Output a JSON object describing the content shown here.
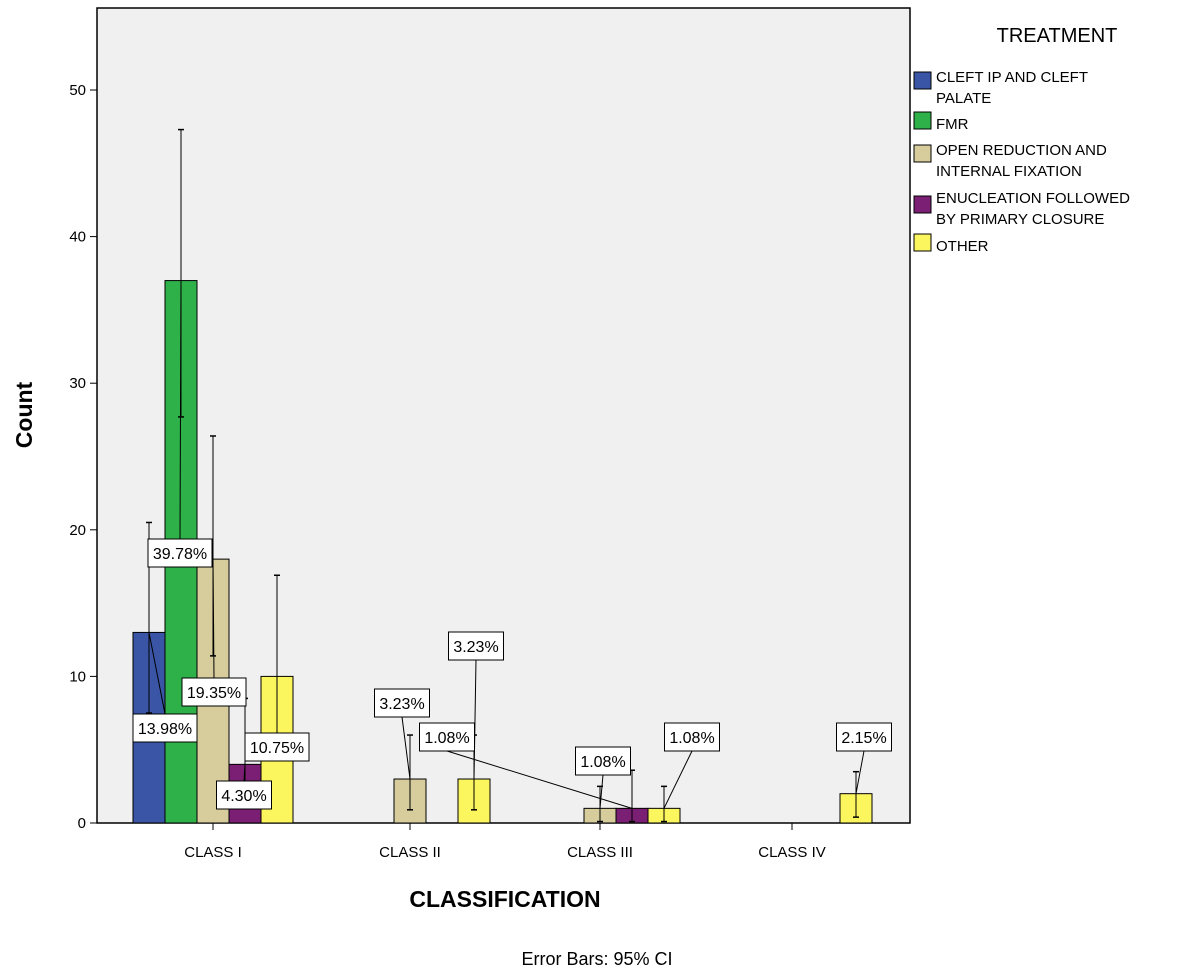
{
  "chart_data": {
    "type": "bar",
    "xlabel": "CLASSIFICATION",
    "ylabel": "Count",
    "ylim": [
      0,
      55
    ],
    "yticks": [
      0,
      10,
      20,
      30,
      40,
      50
    ],
    "grid": false,
    "legend_placement": "right",
    "legend_title": "TREATMENT",
    "footnote": "Error Bars: 95% CI",
    "categories": [
      "CLASS I",
      "CLASS II",
      "CLASS III",
      "CLASS IV"
    ],
    "series": [
      {
        "name": "CLEFT IP AND CLEFT PALATE",
        "legend_lines": [
          "CLEFT IP AND CLEFT",
          "PALATE"
        ],
        "color": "#3a55a5",
        "values": [
          13,
          0,
          0,
          0
        ],
        "ci": [
          [
            7.5,
            20.5
          ],
          null,
          null,
          null
        ],
        "labels": [
          "13.98%",
          null,
          null,
          null
        ]
      },
      {
        "name": "FMR",
        "legend_lines": [
          "FMR"
        ],
        "color": "#2fb14a",
        "values": [
          37,
          0,
          0,
          0
        ],
        "ci": [
          [
            27.7,
            47.3
          ],
          null,
          null,
          null
        ],
        "labels": [
          "39.78%",
          null,
          null,
          null
        ]
      },
      {
        "name": "OPEN REDUCTION AND INTERNAL FIXATION",
        "legend_lines": [
          "OPEN REDUCTION AND",
          "INTERNAL FIXATION"
        ],
        "color": "#d6cc9c",
        "values": [
          18,
          3,
          1,
          0
        ],
        "ci": [
          [
            11.4,
            26.4
          ],
          [
            0.9,
            6.0
          ],
          [
            0.1,
            2.5
          ],
          null
        ],
        "labels": [
          "19.35%",
          "3.23%",
          "1.08%",
          null
        ]
      },
      {
        "name": "ENUCLEATION FOLLOWED BY PRIMARY CLOSURE",
        "legend_lines": [
          "ENUCLEATION FOLLOWED",
          "BY PRIMARY CLOSURE"
        ],
        "color": "#7a1f73",
        "values": [
          4,
          0,
          1,
          0
        ],
        "ci": [
          [
            1.5,
            8.5
          ],
          null,
          [
            0.1,
            3.6
          ],
          null
        ],
        "labels": [
          "4.30%",
          null,
          "1.08%",
          null
        ]
      },
      {
        "name": "OTHER",
        "legend_lines": [
          "OTHER"
        ],
        "color": "#fbf55e",
        "values": [
          10,
          3,
          1,
          2
        ],
        "ci": [
          [
            5.2,
            16.9
          ],
          [
            0.9,
            6.0
          ],
          [
            0.1,
            2.5
          ],
          [
            0.4,
            3.5
          ]
        ],
        "labels": [
          "10.75%",
          "3.23%",
          "1.08%",
          "2.15%"
        ]
      }
    ]
  }
}
